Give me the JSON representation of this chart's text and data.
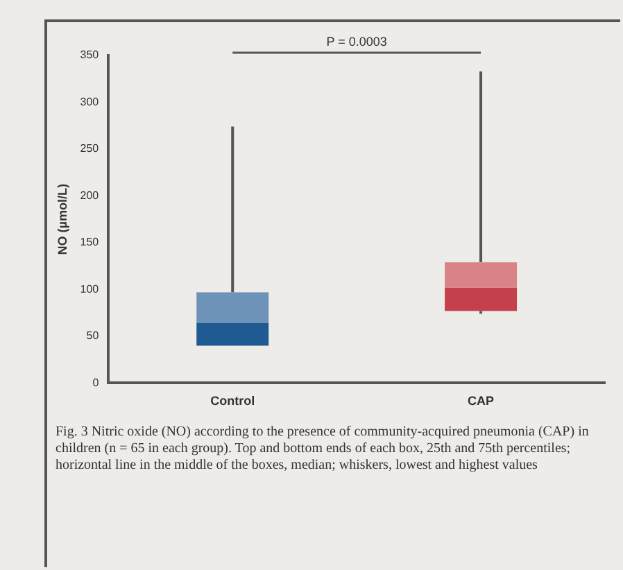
{
  "chart_data": {
    "type": "box",
    "categories": [
      "Control",
      "CAP"
    ],
    "ylabel": "NO (µmol/L)",
    "ylim": [
      0,
      350
    ],
    "yticks": [
      0,
      50,
      100,
      150,
      200,
      250,
      300,
      350
    ],
    "grid": false,
    "legend": false,
    "colors": [
      "#1f5a92",
      "#c4404a"
    ],
    "boxes": [
      {
        "low": 40,
        "q1": 40,
        "median": 64,
        "q3": 97,
        "high": 274
      },
      {
        "low": 74,
        "q1": 77,
        "median": 102,
        "q3": 129,
        "high": 333
      }
    ],
    "annotations": [
      "P = 0.0003",
      "Fig. 3  Nitric oxide (NO) according to the presence of community-acquired pneumonia (CAP) in children (n = 65 in each group). Top and bottom ends of each box, 25th and 75th percentiles; horizontal line in the middle of the boxes, median; whiskers, lowest and highest values"
    ]
  }
}
